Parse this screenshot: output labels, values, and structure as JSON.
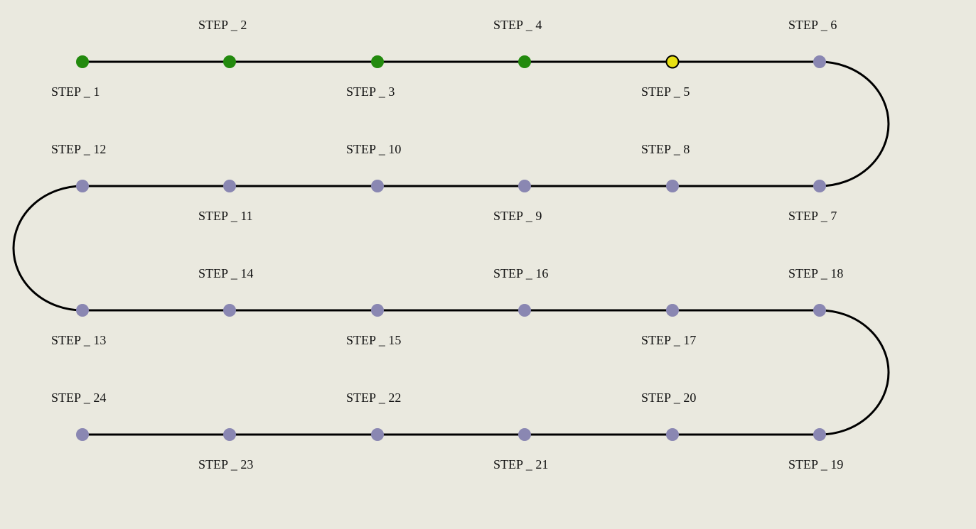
{
  "steps": [
    {
      "label": "STEP _ 1",
      "color": "#238a0e"
    },
    {
      "label": "STEP _ 2",
      "color": "#238a0e"
    },
    {
      "label": "STEP _ 3",
      "color": "#238a0e"
    },
    {
      "label": "STEP _ 4",
      "color": "#238a0e"
    },
    {
      "label": "STEP _ 5",
      "color": "#e8e012",
      "outline": "#000000"
    },
    {
      "label": "STEP _ 6",
      "color": "#8a87b2"
    },
    {
      "label": "STEP _ 7",
      "color": "#8a87b2"
    },
    {
      "label": "STEP _ 8",
      "color": "#8a87b2"
    },
    {
      "label": "STEP _ 9",
      "color": "#8a87b2"
    },
    {
      "label": "STEP _ 10",
      "color": "#8a87b2"
    },
    {
      "label": "STEP _ 11",
      "color": "#8a87b2"
    },
    {
      "label": "STEP _ 12",
      "color": "#8a87b2"
    },
    {
      "label": "STEP _ 13",
      "color": "#8a87b2"
    },
    {
      "label": "STEP _ 14",
      "color": "#8a87b2"
    },
    {
      "label": "STEP _ 15",
      "color": "#8a87b2"
    },
    {
      "label": "STEP _ 16",
      "color": "#8a87b2"
    },
    {
      "label": "STEP _ 17",
      "color": "#8a87b2"
    },
    {
      "label": "STEP _ 18",
      "color": "#8a87b2"
    },
    {
      "label": "STEP _ 19",
      "color": "#8a87b2"
    },
    {
      "label": "STEP _ 20",
      "color": "#8a87b2"
    },
    {
      "label": "STEP _ 21",
      "color": "#8a87b2"
    },
    {
      "label": "STEP _ 22",
      "color": "#8a87b2"
    },
    {
      "label": "STEP _ 23",
      "color": "#8a87b2"
    },
    {
      "label": "STEP _ 24",
      "color": "#8a87b2"
    }
  ]
}
